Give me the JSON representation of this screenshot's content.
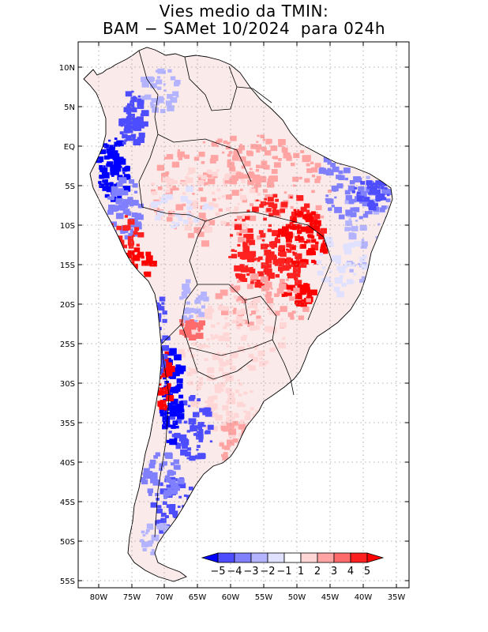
{
  "title_line1": "Vies medio da TMIN:",
  "title_line2": "BAM − SAMet 10/2024  para 024h",
  "lat_labels": [
    "10N",
    "5N",
    "EQ",
    "5S",
    "10S",
    "15S",
    "20S",
    "25S",
    "30S",
    "35S",
    "40S",
    "45S",
    "50S",
    "55S"
  ],
  "lon_labels": [
    "80W",
    "75W",
    "70W",
    "65W",
    "60W",
    "55W",
    "50W",
    "45W",
    "40W",
    "35W"
  ],
  "colorbar": {
    "levels": [
      "−5",
      "−4",
      "−3",
      "−2",
      "−1",
      "1",
      "2",
      "3",
      "4",
      "5"
    ],
    "colors": [
      "#0000ff",
      "#4d4dff",
      "#8080ff",
      "#b3b3ff",
      "#e0e0ff",
      "#ffffff",
      "#ffd6d6",
      "#ffa3a3",
      "#ff6b6b",
      "#ff2020",
      "#ff0000"
    ]
  },
  "colors": {
    "grid": "#999999",
    "border": "#000000",
    "land_base": "#fbeaea"
  }
}
